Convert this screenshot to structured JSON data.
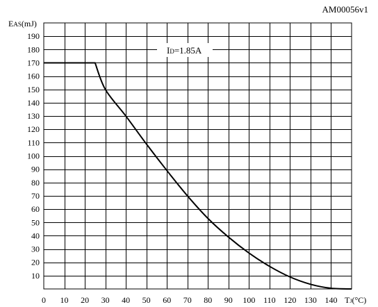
{
  "figure_id": "AM00056v1",
  "chart_data": {
    "type": "line",
    "ylabel_main": "E",
    "ylabel_sub": "AS",
    "ylabel_unit": "(mJ)",
    "xlabel_main": "T",
    "xlabel_sub": "J",
    "xlabel_unit": "(°C)",
    "annotation_main": "I",
    "annotation_sub": "D",
    "annotation_value": "=1.85A",
    "xlim": [
      0,
      150
    ],
    "ylim": [
      0,
      200
    ],
    "x_step": 10,
    "y_step": 10,
    "grid": true,
    "xticks": [
      "0",
      "10",
      "20",
      "30",
      "40",
      "50",
      "60",
      "70",
      "80",
      "90",
      "100",
      "110",
      "120",
      "130",
      "140"
    ],
    "yticks": [
      "190",
      "180",
      "170",
      "160",
      "150",
      "140",
      "130",
      "120",
      "110",
      "100",
      "90",
      "80",
      "70",
      "60",
      "50",
      "40",
      "30",
      "20",
      "10"
    ],
    "series": [
      {
        "x": [
          0,
          25,
          30,
          40,
          50,
          60,
          70,
          80,
          90,
          100,
          110,
          120,
          130,
          140,
          150
        ],
        "values": [
          170,
          170,
          150,
          130,
          109,
          89,
          70,
          53,
          39,
          27,
          17,
          9,
          3.5,
          0.5,
          0
        ]
      }
    ]
  }
}
